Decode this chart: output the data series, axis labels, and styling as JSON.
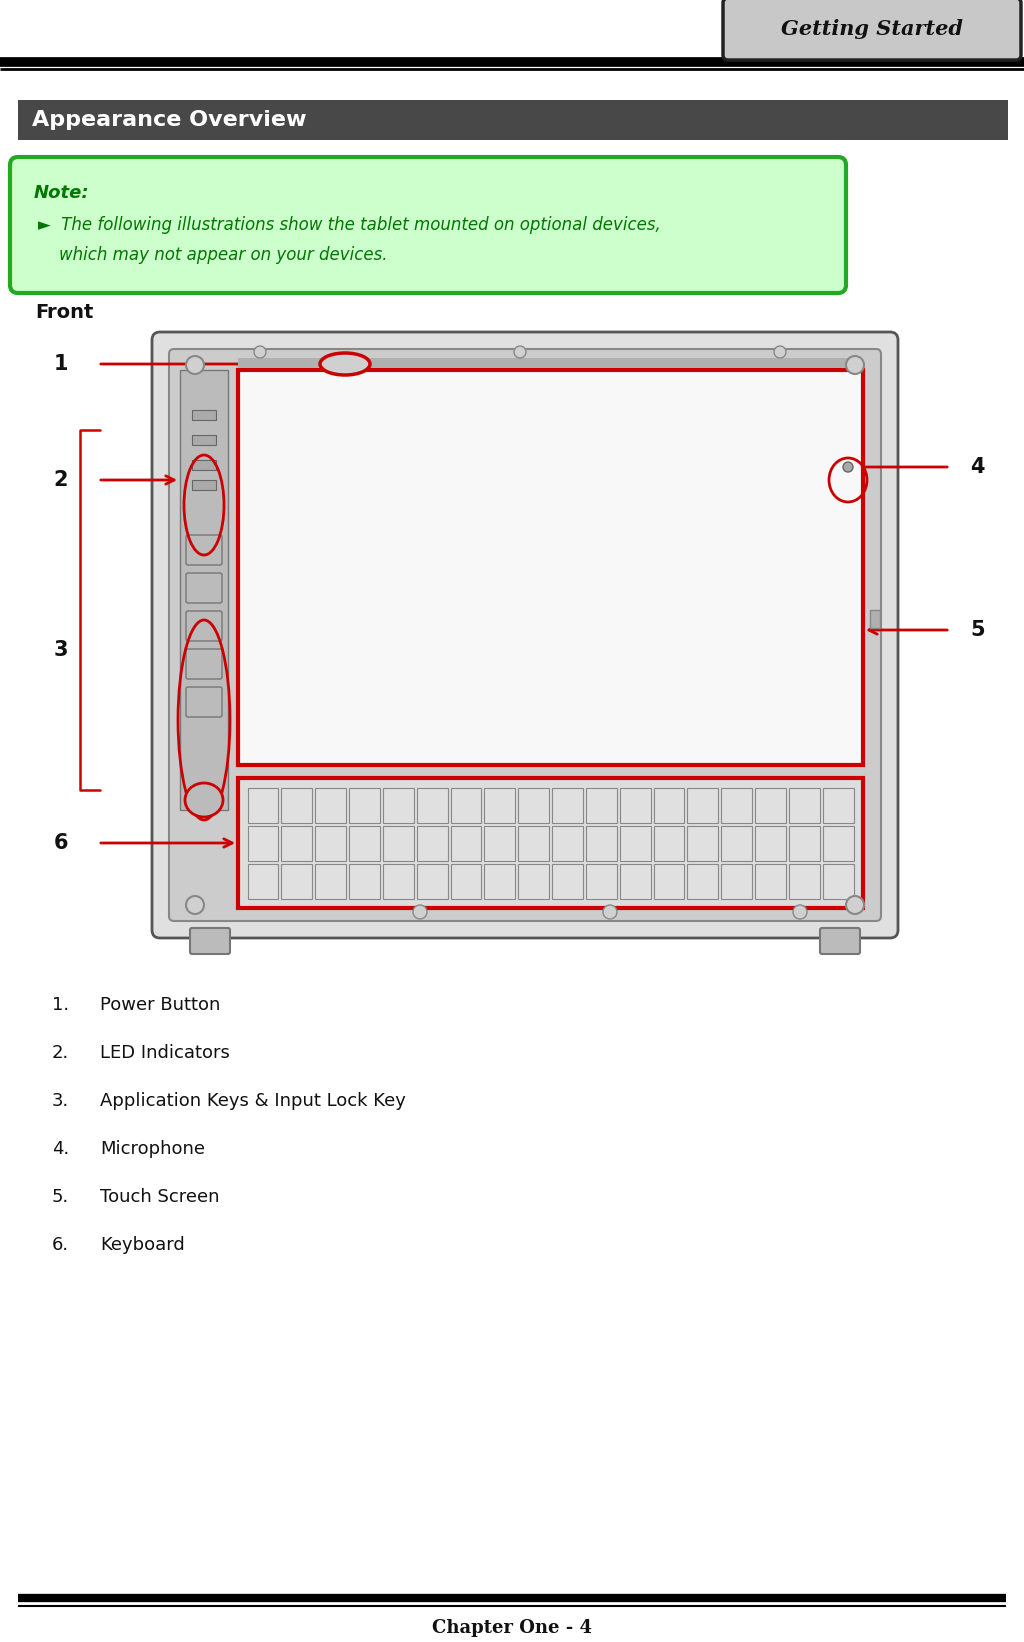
{
  "title_tab": "Getting Started",
  "section_title": "Appearance Overview",
  "note_title": "Note:",
  "note_line1": "►  The following illustrations show the tablet mounted on optional devices,",
  "note_line2": "    which may not appear on your devices.",
  "front_label": "Front",
  "items": [
    "Power Button",
    "LED Indicators",
    "Application Keys & Input Lock Key",
    "Microphone",
    "Touch Screen",
    "Keyboard"
  ],
  "footer": "Chapter One - 4",
  "bg_color": "#ffffff",
  "tab_bg": "#c8c8c8",
  "tab_border": "#222222",
  "section_bg": "#484848",
  "section_text": "#ffffff",
  "note_bg": "#ccffcc",
  "note_border": "#22aa22",
  "note_text_color": "#007700",
  "red": "#cc0000",
  "dark": "#111111",
  "device_outer": "#aaaaaa",
  "device_border": "#555555",
  "device_inner": "#888888",
  "screen_bg": "#f8f8f8",
  "kbd_bg": "#cccccc",
  "key_bg": "#e0e0e0",
  "key_border": "#888888"
}
